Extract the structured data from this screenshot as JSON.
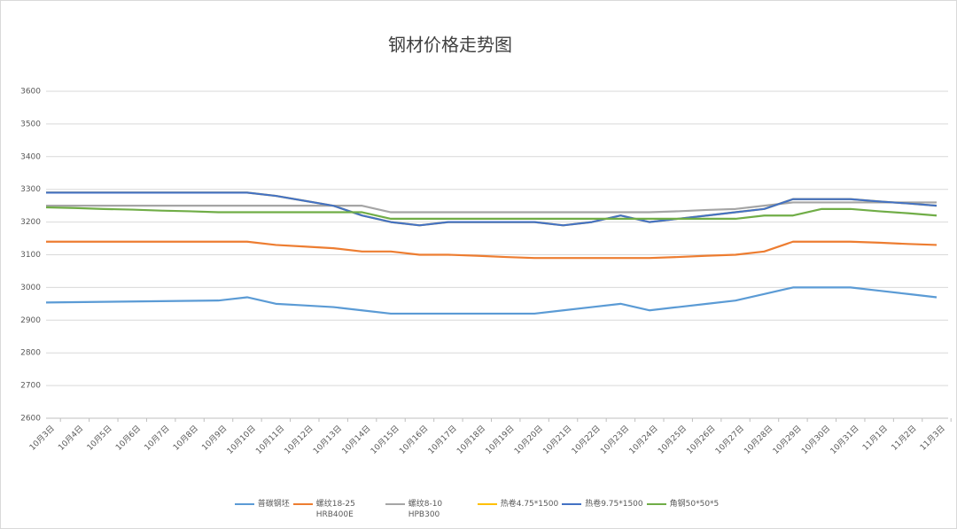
{
  "chart_data": {
    "type": "line",
    "title": "钢材价格走势图",
    "categories": [
      "10月3日",
      "10月4日",
      "10月5日",
      "10月6日",
      "10月7日",
      "10月8日",
      "10月9日",
      "10月10日",
      "10月11日",
      "10月12日",
      "10月13日",
      "10月14日",
      "10月15日",
      "10月16日",
      "10月17日",
      "10月18日",
      "10月19日",
      "10月20日",
      "10月21日",
      "10月22日",
      "10月23日",
      "10月24日",
      "10月25日",
      "10月26日",
      "10月27日",
      "10月28日",
      "10月29日",
      "10月30日",
      "10月31日",
      "11月1日",
      "11月2日",
      "11月3日"
    ],
    "series": [
      {
        "name": "普碳钢坯",
        "color": "#5b9bd5",
        "values": [
          2954,
          2955,
          2956,
          2957,
          2958,
          2959,
          2960,
          2970,
          2950,
          2945,
          2940,
          2930,
          2920,
          2920,
          2920,
          2920,
          2920,
          2920,
          2930,
          2940,
          2950,
          2930,
          2940,
          2950,
          2960,
          2980,
          3000,
          3000,
          3000,
          2990,
          2980,
          2970
        ]
      },
      {
        "name": "螺纹18-25 HRB400E",
        "color": "#ed7d31",
        "values": [
          3140,
          3140,
          3140,
          3140,
          3140,
          3140,
          3140,
          3140,
          3130,
          3125,
          3120,
          3110,
          3110,
          3100,
          3100,
          3097,
          3093,
          3090,
          3090,
          3090,
          3090,
          3090,
          3093,
          3097,
          3100,
          3110,
          3140,
          3140,
          3140,
          3137,
          3133,
          3130
        ]
      },
      {
        "name": "螺纹8-10 HPB300",
        "color": "#a5a5a5",
        "values": [
          3250,
          3250,
          3250,
          3250,
          3250,
          3250,
          3250,
          3250,
          3250,
          3250,
          3250,
          3250,
          3230,
          3230,
          3230,
          3230,
          3230,
          3230,
          3230,
          3230,
          3230,
          3230,
          3233,
          3237,
          3240,
          3250,
          3260,
          3260,
          3260,
          3260,
          3260,
          3260
        ]
      },
      {
        "name": "热卷4.75*1500",
        "color": "#ffc000",
        "values": [
          3290,
          3290,
          3290,
          3290,
          3290,
          3290,
          3290,
          3290,
          3280,
          3265,
          3250,
          3220,
          3200,
          3190,
          3200,
          3200,
          3200,
          3200,
          3190,
          3200,
          3220,
          3200,
          3210,
          3220,
          3230,
          3240,
          3270,
          3270,
          3270,
          3263,
          3257,
          3250
        ]
      },
      {
        "name": "热卷9.75*1500",
        "color": "#4472c4",
        "values": [
          3290,
          3290,
          3290,
          3290,
          3290,
          3290,
          3290,
          3290,
          3280,
          3265,
          3250,
          3220,
          3200,
          3190,
          3200,
          3200,
          3200,
          3200,
          3190,
          3200,
          3220,
          3200,
          3210,
          3220,
          3230,
          3240,
          3270,
          3270,
          3270,
          3263,
          3257,
          3250
        ]
      },
      {
        "name": "角钢50*50*5",
        "color": "#70ad47",
        "values": [
          3245,
          3243,
          3240,
          3238,
          3235,
          3233,
          3230,
          3230,
          3230,
          3230,
          3230,
          3230,
          3210,
          3210,
          3210,
          3210,
          3210,
          3210,
          3210,
          3210,
          3210,
          3210,
          3210,
          3210,
          3210,
          3220,
          3220,
          3240,
          3240,
          3233,
          3227,
          3220
        ]
      }
    ],
    "ylim": [
      2600,
      3600
    ],
    "yticks": [
      2600,
      2700,
      2800,
      2900,
      3000,
      3100,
      3200,
      3300,
      3400,
      3500,
      3600
    ],
    "grid": true
  }
}
